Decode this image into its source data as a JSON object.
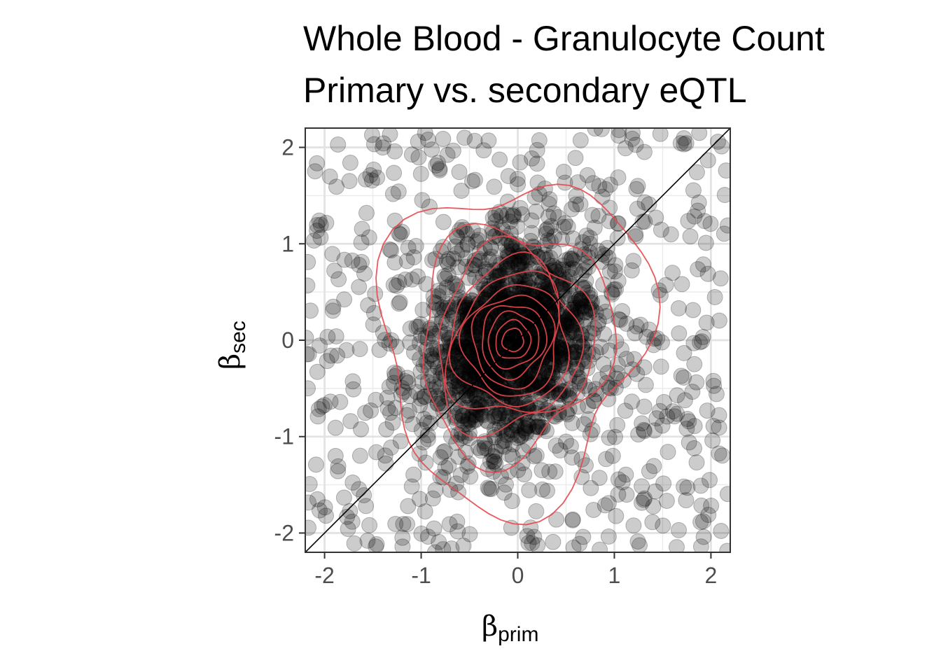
{
  "chart_data": {
    "type": "scatter",
    "title": "Whole Blood - Granulocyte Count",
    "subtitle": "Primary vs. secondary eQTL",
    "xlabel": {
      "symbol": "β",
      "subscript": "prim"
    },
    "ylabel": {
      "symbol": "β",
      "subscript": "sec"
    },
    "xlim": [
      -2.2,
      2.2
    ],
    "ylim": [
      -2.2,
      2.2
    ],
    "x_ticks": [
      -2,
      -1,
      0,
      1,
      2
    ],
    "y_ticks": [
      -2,
      -1,
      0,
      1,
      2
    ],
    "x_tick_labels": [
      "-2",
      "-1",
      "0",
      "1",
      "2"
    ],
    "y_tick_labels": [
      "-2",
      "-1",
      "0",
      "1",
      "2"
    ],
    "grid": true,
    "reference_line": {
      "type": "identity",
      "slope": 1,
      "intercept": 0
    },
    "point_color": "#000000",
    "contour_color": "#e8474d",
    "density_contours": {
      "center": [
        -0.05,
        0.0
      ],
      "levels": [
        {
          "rx": 0.11,
          "ry": 0.12
        },
        {
          "rx": 0.18,
          "ry": 0.2
        },
        {
          "rx": 0.26,
          "ry": 0.29
        },
        {
          "rx": 0.33,
          "ry": 0.38
        },
        {
          "rx": 0.41,
          "ry": 0.48
        },
        {
          "rx": 0.49,
          "ry": 0.58
        },
        {
          "rx": 0.58,
          "ry": 0.69
        },
        {
          "rx": 0.68,
          "ry": 0.81
        },
        {
          "rx": 0.8,
          "ry": 0.96
        },
        {
          "rx": 0.98,
          "ry": 1.2
        },
        {
          "rx": 1.35,
          "ry": 1.7
        }
      ],
      "tilt_degrees": 12
    },
    "points": {
      "n": 2000,
      "distribution": "bivariate core with heavy tails",
      "core": {
        "mean": [
          -0.05,
          0.0
        ],
        "sd": [
          0.45,
          0.55
        ],
        "correlation": 0.2,
        "share": 0.7
      },
      "tail": {
        "range": [
          -2.2,
          2.2
        ],
        "share": 0.3
      }
    }
  }
}
